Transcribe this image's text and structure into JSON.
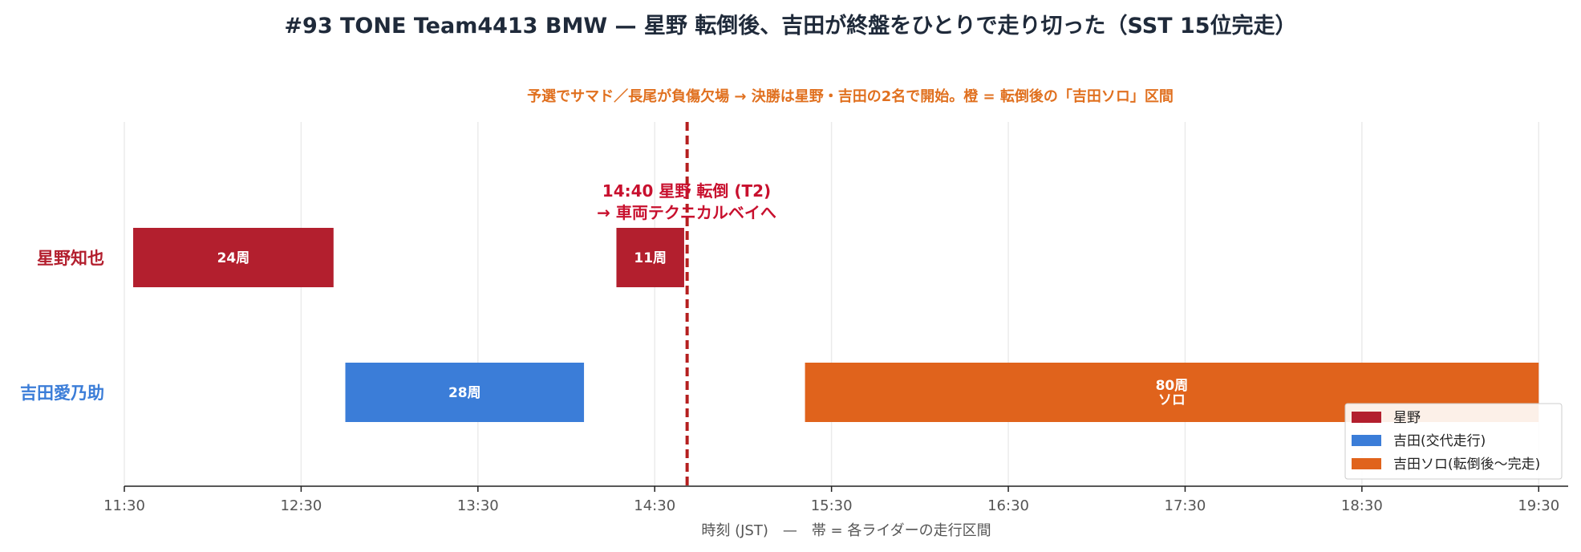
{
  "chart_data": {
    "type": "gantt",
    "title": "#93 TONE Team4413 BMW — 星野 転倒後、吉田が終盤をひとりで走り切った（SST 15位完走）",
    "subtitle": "予選でサマド／長尾が負傷欠場 → 決勝は星野・吉田の2名で開始。橙 = 転倒後の「吉田ソロ」区間",
    "xlabel": "時刻 (JST)　—　帯 = 各ライダーの走行区間",
    "x_ticks": [
      "11:30",
      "12:30",
      "13:30",
      "14:30",
      "15:30",
      "16:30",
      "17:30",
      "18:30",
      "19:30"
    ],
    "x_range": [
      "11:30",
      "19:40"
    ],
    "grid": "vertical",
    "legend_position": "bottom-right",
    "riders": [
      {
        "name": "星野知也",
        "color": "#b31f2e"
      },
      {
        "name": "吉田愛乃助",
        "color": "#3b7dd8"
      }
    ],
    "series": [
      {
        "name": "星野",
        "color": "#b31f2e"
      },
      {
        "name": "吉田(交代走行)",
        "color": "#3b7dd8"
      },
      {
        "name": "吉田ソロ(転倒後〜完走)",
        "color": "#e0631c"
      }
    ],
    "stints": [
      {
        "rider": 0,
        "series": 0,
        "start": "11:33",
        "end": "12:41",
        "label": "24周"
      },
      {
        "rider": 0,
        "series": 0,
        "start": "14:17",
        "end": "14:40",
        "label": "11周"
      },
      {
        "rider": 1,
        "series": 1,
        "start": "12:45",
        "end": "14:06",
        "label": "28周"
      },
      {
        "rider": 1,
        "series": 2,
        "start": "15:21",
        "end": "19:30",
        "label": "80周\nソロ"
      }
    ],
    "annotation": {
      "time": "14:41",
      "line1": "14:40 星野 転倒 (T2)",
      "line2": "→ 車両テクニカルベイへ",
      "color": "#b51f1f"
    }
  }
}
